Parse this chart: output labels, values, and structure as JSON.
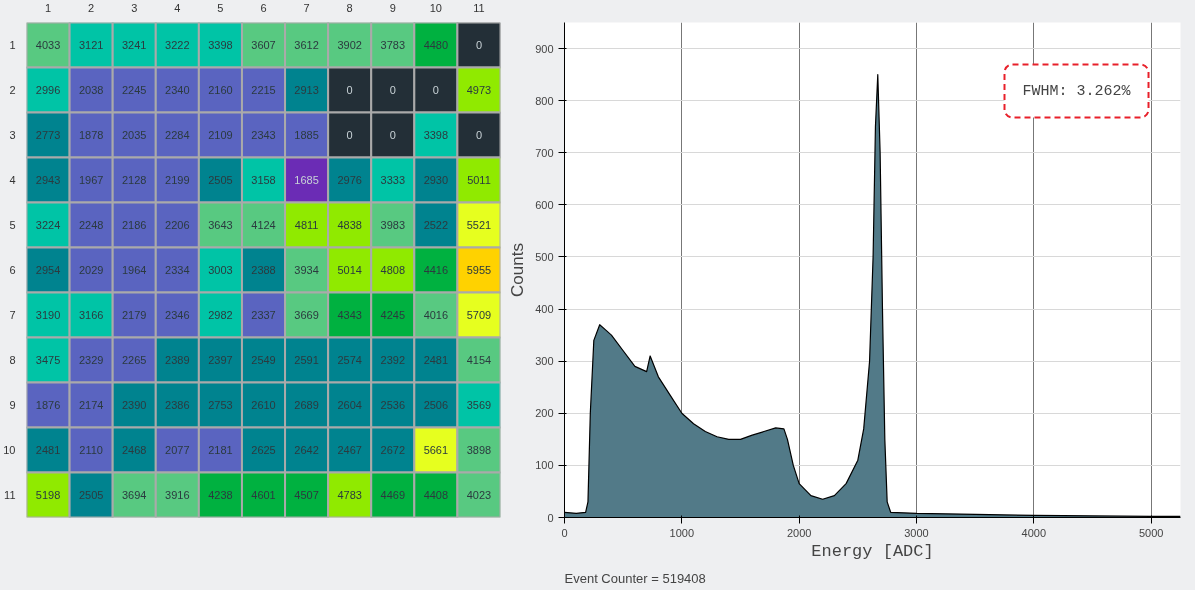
{
  "chart_data": [
    {
      "type": "heatmap",
      "data_labels": true,
      "categories": [
        "1",
        "2",
        "3",
        "4",
        "5",
        "6",
        "7",
        "8",
        "9",
        "10",
        "11"
      ],
      "y_categories": [
        "1",
        "2",
        "3",
        "4",
        "5",
        "6",
        "7",
        "8",
        "9",
        "10",
        "11"
      ],
      "cells": [
        [
          4033,
          3121,
          3241,
          3222,
          3398,
          3607,
          3612,
          3902,
          3783,
          4480,
          0
        ],
        [
          2996,
          2038,
          2245,
          2340,
          2160,
          2215,
          2913,
          0,
          0,
          0,
          4973
        ],
        [
          2773,
          1878,
          2035,
          2284,
          2109,
          2343,
          1885,
          0,
          0,
          3398,
          0
        ],
        [
          2943,
          1967,
          2128,
          2199,
          2505,
          3158,
          1685,
          2976,
          3333,
          2930,
          5011
        ],
        [
          3224,
          2248,
          2186,
          2206,
          3643,
          4124,
          4811,
          4838,
          3983,
          2522,
          5521
        ],
        [
          2954,
          2029,
          1964,
          2334,
          3003,
          2388,
          3934,
          5014,
          4808,
          4416,
          5955
        ],
        [
          3190,
          3166,
          2179,
          2346,
          2982,
          2337,
          3669,
          4343,
          4245,
          4016,
          5709
        ],
        [
          3475,
          2329,
          2265,
          2389,
          2397,
          2549,
          2591,
          2574,
          2392,
          2481,
          4154
        ],
        [
          1876,
          2174,
          2390,
          2386,
          2753,
          2610,
          2689,
          2604,
          2536,
          2506,
          3569
        ],
        [
          2481,
          2110,
          2468,
          2077,
          2181,
          2625,
          2642,
          2467,
          2672,
          5661,
          3898
        ],
        [
          5198,
          2505,
          3694,
          3916,
          4238,
          4601,
          4507,
          4783,
          4469,
          4408,
          4023
        ]
      ],
      "colors": [
        [
          "#58c981",
          "#00c4a6",
          "#00c4a6",
          "#00c4a6",
          "#00c4a6",
          "#58c981",
          "#58c981",
          "#58c981",
          "#58c981",
          "#00b140",
          "#232f37"
        ],
        [
          "#00c4a6",
          "#5a64c0",
          "#5a64c0",
          "#5a64c0",
          "#5a64c0",
          "#5a64c0",
          "#00838f",
          "#232f37",
          "#232f37",
          "#232f37",
          "#90ea00"
        ],
        [
          "#00838f",
          "#5a64c0",
          "#5a64c0",
          "#5a64c0",
          "#5a64c0",
          "#5a64c0",
          "#5a64c0",
          "#232f37",
          "#232f37",
          "#00c4a6",
          "#232f37"
        ],
        [
          "#00838f",
          "#5a64c0",
          "#5a64c0",
          "#5a64c0",
          "#00838f",
          "#00c4a6",
          "#6b2cb5",
          "#00838f",
          "#00c4a6",
          "#00838f",
          "#90ea00"
        ],
        [
          "#00c4a6",
          "#5a64c0",
          "#5a64c0",
          "#5a64c0",
          "#58c981",
          "#58c981",
          "#90ea00",
          "#90ea00",
          "#58c981",
          "#00838f",
          "#e6ff1f"
        ],
        [
          "#00838f",
          "#5a64c0",
          "#5a64c0",
          "#5a64c0",
          "#00c4a6",
          "#00838f",
          "#58c981",
          "#90ea00",
          "#90ea00",
          "#00b140",
          "#ffd200"
        ],
        [
          "#00c4a6",
          "#00c4a6",
          "#5a64c0",
          "#5a64c0",
          "#00c4a6",
          "#5a64c0",
          "#58c981",
          "#00b140",
          "#00b140",
          "#58c981",
          "#e6ff1f"
        ],
        [
          "#00c4a6",
          "#5a64c0",
          "#5a64c0",
          "#00838f",
          "#00838f",
          "#00838f",
          "#00838f",
          "#00838f",
          "#00838f",
          "#00838f",
          "#58c981"
        ],
        [
          "#5a64c0",
          "#5a64c0",
          "#00838f",
          "#00838f",
          "#00838f",
          "#00838f",
          "#00838f",
          "#00838f",
          "#00838f",
          "#00838f",
          "#00c4a6"
        ],
        [
          "#00838f",
          "#5a64c0",
          "#00838f",
          "#5a64c0",
          "#5a64c0",
          "#00838f",
          "#00838f",
          "#00838f",
          "#00838f",
          "#e6ff1f",
          "#58c981"
        ],
        [
          "#90ea00",
          "#00838f",
          "#58c981",
          "#58c981",
          "#00b140",
          "#00b140",
          "#00b140",
          "#90ea00",
          "#00b140",
          "#00b140",
          "#58c981"
        ]
      ]
    },
    {
      "type": "area",
      "xlabel": "Energy [ADC]",
      "ylabel": "Counts",
      "xlim": [
        0,
        5250
      ],
      "ylim": [
        0,
        950
      ],
      "xticks": [
        0,
        1000,
        2000,
        3000,
        4000,
        5000
      ],
      "yticks": [
        0,
        100,
        200,
        300,
        400,
        500,
        600,
        700,
        800,
        900
      ],
      "grid": true,
      "annotations": [
        "FWHM: 3.262%",
        "Event Counter = 519408"
      ],
      "x": [
        0,
        100,
        180,
        200,
        220,
        250,
        300,
        350,
        400,
        500,
        600,
        700,
        730,
        800,
        900,
        1000,
        1100,
        1200,
        1300,
        1400,
        1500,
        1600,
        1700,
        1800,
        1870,
        1900,
        1950,
        2000,
        2100,
        2200,
        2300,
        2400,
        2500,
        2550,
        2600,
        2630,
        2650,
        2670,
        2690,
        2710,
        2730,
        2750,
        2780,
        3000,
        3500,
        4000,
        4500,
        5000,
        5250
      ],
      "series": [
        {
          "color": "#527a88",
          "values": [
            10,
            8,
            10,
            30,
            200,
            340,
            370,
            360,
            350,
            320,
            290,
            280,
            310,
            270,
            235,
            200,
            180,
            165,
            155,
            150,
            150,
            158,
            165,
            172,
            170,
            150,
            100,
            65,
            42,
            35,
            42,
            65,
            110,
            170,
            300,
            500,
            750,
            850,
            700,
            400,
            150,
            30,
            10,
            8,
            6,
            4,
            3,
            2,
            2
          ]
        }
      ]
    }
  ]
}
